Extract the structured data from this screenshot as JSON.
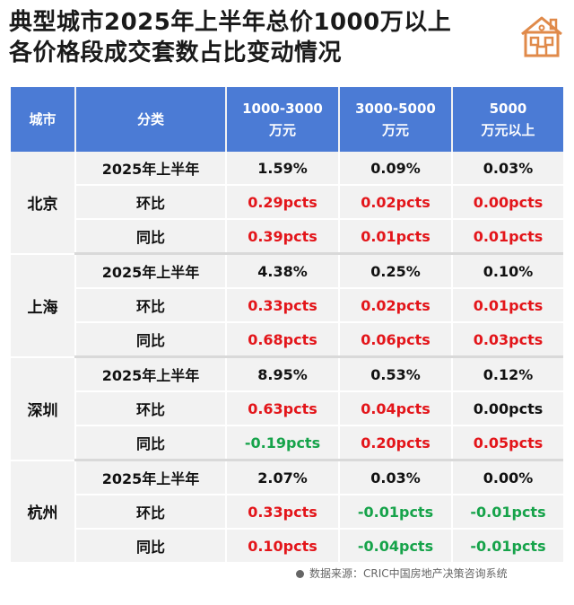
{
  "title": {
    "line1": "典型城市2025年上半年总价1000万以上",
    "line2": "各价格段成交套数占比变动情况"
  },
  "logo_icon": "house-icon",
  "table": {
    "headers": {
      "city": "城市",
      "category": "分类",
      "col1_line1": "1000-3000",
      "col1_line2": "万元",
      "col2_line1": "3000-5000",
      "col2_line2": "万元",
      "col3_line1": "5000",
      "col3_line2": "万元以上"
    },
    "groups": [
      {
        "city": "北京",
        "rows": [
          {
            "label": "2025年上半年",
            "cells": [
              {
                "v": "1.59%",
                "c": "black"
              },
              {
                "v": "0.09%",
                "c": "black"
              },
              {
                "v": "0.03%",
                "c": "black"
              }
            ]
          },
          {
            "label": "环比",
            "cells": [
              {
                "v": "0.29pcts",
                "c": "red"
              },
              {
                "v": "0.02pcts",
                "c": "red"
              },
              {
                "v": "0.00pcts",
                "c": "red"
              }
            ]
          },
          {
            "label": "同比",
            "cells": [
              {
                "v": "0.39pcts",
                "c": "red"
              },
              {
                "v": "0.01pcts",
                "c": "red"
              },
              {
                "v": "0.01pcts",
                "c": "red"
              }
            ]
          }
        ]
      },
      {
        "city": "上海",
        "rows": [
          {
            "label": "2025年上半年",
            "cells": [
              {
                "v": "4.38%",
                "c": "black"
              },
              {
                "v": "0.25%",
                "c": "black"
              },
              {
                "v": "0.10%",
                "c": "black"
              }
            ]
          },
          {
            "label": "环比",
            "cells": [
              {
                "v": "0.33pcts",
                "c": "red"
              },
              {
                "v": "0.02pcts",
                "c": "red"
              },
              {
                "v": "0.01pcts",
                "c": "red"
              }
            ]
          },
          {
            "label": "同比",
            "cells": [
              {
                "v": "0.68pcts",
                "c": "red"
              },
              {
                "v": "0.06pcts",
                "c": "red"
              },
              {
                "v": "0.03pcts",
                "c": "red"
              }
            ]
          }
        ]
      },
      {
        "city": "深圳",
        "rows": [
          {
            "label": "2025年上半年",
            "cells": [
              {
                "v": "8.95%",
                "c": "black"
              },
              {
                "v": "0.53%",
                "c": "black"
              },
              {
                "v": "0.12%",
                "c": "black"
              }
            ]
          },
          {
            "label": "环比",
            "cells": [
              {
                "v": "0.63pcts",
                "c": "red"
              },
              {
                "v": "0.04pcts",
                "c": "red"
              },
              {
                "v": "0.00pcts",
                "c": "black"
              }
            ]
          },
          {
            "label": "同比",
            "cells": [
              {
                "v": "-0.19pcts",
                "c": "green"
              },
              {
                "v": "0.20pcts",
                "c": "red"
              },
              {
                "v": "0.05pcts",
                "c": "red"
              }
            ]
          }
        ]
      },
      {
        "city": "杭州",
        "rows": [
          {
            "label": "2025年上半年",
            "cells": [
              {
                "v": "2.07%",
                "c": "black"
              },
              {
                "v": "0.03%",
                "c": "black"
              },
              {
                "v": "0.00%",
                "c": "black"
              }
            ]
          },
          {
            "label": "环比",
            "cells": [
              {
                "v": "0.33pcts",
                "c": "red"
              },
              {
                "v": "-0.01pcts",
                "c": "green"
              },
              {
                "v": "-0.01pcts",
                "c": "green"
              }
            ]
          },
          {
            "label": "同比",
            "cells": [
              {
                "v": "0.10pcts",
                "c": "red"
              },
              {
                "v": "-0.04pcts",
                "c": "green"
              },
              {
                "v": "-0.01pcts",
                "c": "green"
              }
            ]
          }
        ]
      }
    ]
  },
  "source": "数据来源：CRIC中国房地产决策咨询系统",
  "colors": {
    "header": "#4b7bd5",
    "positive": "#e3151a",
    "negative": "#16a34a"
  }
}
